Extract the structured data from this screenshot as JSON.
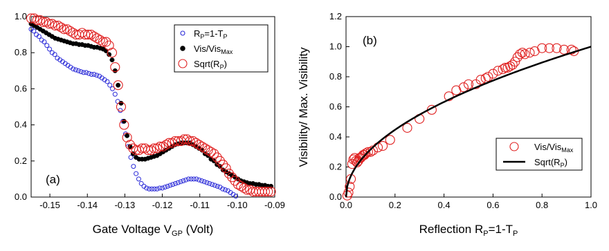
{
  "chart_data": [
    {
      "type": "scatter",
      "panel_label": "(a)",
      "xlabel_main": "Gate Voltage V",
      "xlabel_sub": "GP",
      "xlabel_tail": " (Volt)",
      "xlim": [
        -0.155,
        -0.09
      ],
      "ylim": [
        0.0,
        1.0
      ],
      "xticks": [
        -0.15,
        -0.14,
        -0.13,
        -0.12,
        -0.11,
        -0.1,
        -0.09
      ],
      "xtick_labels": [
        "-0.15",
        "-0.14",
        "-0.13",
        "-0.12",
        "-0.11",
        "-0.10",
        "-0.09"
      ],
      "yticks": [
        0.0,
        0.2,
        0.4,
        0.6,
        0.8,
        1.0
      ],
      "ytick_labels": [
        "0.0",
        "0.2",
        "0.4",
        "0.6",
        "0.8",
        "1.0"
      ],
      "legend_position": "top-right",
      "series": [
        {
          "legend": {
            "main": "R",
            "sub": "P",
            "tail": "=1-T",
            "sub2": "P"
          },
          "marker": "open-circle-small",
          "color": "#2a2ad8",
          "x": [
            -0.155,
            -0.1543,
            -0.1536,
            -0.1529,
            -0.1522,
            -0.1515,
            -0.1508,
            -0.1501,
            -0.1494,
            -0.1487,
            -0.148,
            -0.1473,
            -0.1466,
            -0.1459,
            -0.1452,
            -0.1445,
            -0.1438,
            -0.1431,
            -0.1424,
            -0.1417,
            -0.141,
            -0.1403,
            -0.1396,
            -0.1389,
            -0.1382,
            -0.1375,
            -0.1368,
            -0.1361,
            -0.1354,
            -0.1347,
            -0.134,
            -0.1333,
            -0.1326,
            -0.1319,
            -0.1312,
            -0.1305,
            -0.1298,
            -0.1291,
            -0.1284,
            -0.1277,
            -0.127,
            -0.1263,
            -0.1256,
            -0.1249,
            -0.1242,
            -0.1235,
            -0.1228,
            -0.1221,
            -0.1214,
            -0.1207,
            -0.12,
            -0.1193,
            -0.1186,
            -0.1179,
            -0.1172,
            -0.1165,
            -0.1158,
            -0.1151,
            -0.1144,
            -0.1137,
            -0.113,
            -0.1123,
            -0.1116,
            -0.1109,
            -0.1102,
            -0.1095,
            -0.1088,
            -0.1081,
            -0.1074,
            -0.1067,
            -0.106,
            -0.1053,
            -0.1046,
            -0.1039,
            -0.1032,
            -0.1025,
            -0.1018,
            -0.1011,
            -0.1004
          ],
          "y": [
            0.93,
            0.92,
            0.9,
            0.89,
            0.87,
            0.86,
            0.84,
            0.82,
            0.8,
            0.79,
            0.77,
            0.76,
            0.75,
            0.74,
            0.73,
            0.72,
            0.71,
            0.705,
            0.7,
            0.695,
            0.69,
            0.69,
            0.685,
            0.68,
            0.68,
            0.675,
            0.67,
            0.66,
            0.65,
            0.64,
            0.62,
            0.6,
            0.57,
            0.53,
            0.48,
            0.42,
            0.35,
            0.28,
            0.22,
            0.17,
            0.13,
            0.1,
            0.075,
            0.06,
            0.05,
            0.045,
            0.045,
            0.045,
            0.045,
            0.05,
            0.05,
            0.055,
            0.06,
            0.065,
            0.07,
            0.075,
            0.08,
            0.085,
            0.09,
            0.095,
            0.1,
            0.1,
            0.1,
            0.1,
            0.095,
            0.09,
            0.085,
            0.08,
            0.075,
            0.07,
            0.065,
            0.06,
            0.055,
            0.045,
            0.04,
            0.035,
            0.025,
            0.015,
            0.005
          ]
        },
        {
          "legend": {
            "main": "Vis/Vis",
            "sub": "Max",
            "tail": "",
            "sub2": ""
          },
          "marker": "filled-circle",
          "color": "#000000",
          "x": [
            -0.155,
            -0.1542,
            -0.1534,
            -0.1526,
            -0.1518,
            -0.151,
            -0.1502,
            -0.1494,
            -0.1486,
            -0.1478,
            -0.147,
            -0.1462,
            -0.1454,
            -0.1446,
            -0.1438,
            -0.143,
            -0.1422,
            -0.1414,
            -0.1406,
            -0.1398,
            -0.139,
            -0.1382,
            -0.1374,
            -0.1366,
            -0.1358,
            -0.135,
            -0.1342,
            -0.1334,
            -0.1326,
            -0.1318,
            -0.131,
            -0.1302,
            -0.1294,
            -0.1286,
            -0.1278,
            -0.127,
            -0.1262,
            -0.1254,
            -0.1246,
            -0.1238,
            -0.123,
            -0.1222,
            -0.1214,
            -0.1206,
            -0.1198,
            -0.119,
            -0.1182,
            -0.1174,
            -0.1166,
            -0.1158,
            -0.115,
            -0.1142,
            -0.1134,
            -0.1126,
            -0.1118,
            -0.111,
            -0.1102,
            -0.1094,
            -0.1086,
            -0.1078,
            -0.107,
            -0.1062,
            -0.1054,
            -0.1046,
            -0.1038,
            -0.103,
            -0.1022,
            -0.1014,
            -0.1006,
            -0.0998,
            -0.099,
            -0.0982,
            -0.0974,
            -0.0966,
            -0.0958,
            -0.095,
            -0.0942,
            -0.0934,
            -0.0926,
            -0.0918,
            -0.091
          ],
          "y": [
            0.96,
            0.95,
            0.94,
            0.93,
            0.92,
            0.91,
            0.9,
            0.89,
            0.88,
            0.875,
            0.87,
            0.865,
            0.86,
            0.855,
            0.85,
            0.85,
            0.845,
            0.845,
            0.84,
            0.84,
            0.835,
            0.83,
            0.83,
            0.825,
            0.82,
            0.81,
            0.79,
            0.76,
            0.7,
            0.62,
            0.52,
            0.42,
            0.34,
            0.28,
            0.24,
            0.22,
            0.21,
            0.21,
            0.21,
            0.215,
            0.22,
            0.225,
            0.23,
            0.24,
            0.25,
            0.26,
            0.27,
            0.28,
            0.29,
            0.295,
            0.3,
            0.3,
            0.3,
            0.3,
            0.29,
            0.28,
            0.27,
            0.26,
            0.24,
            0.23,
            0.21,
            0.2,
            0.18,
            0.17,
            0.15,
            0.14,
            0.13,
            0.12,
            0.11,
            0.1,
            0.09,
            0.085,
            0.08,
            0.075,
            0.075,
            0.07,
            0.07,
            0.065,
            0.065,
            0.06,
            0.06
          ]
        },
        {
          "legend": {
            "main": "Sqrt(R",
            "sub": "P",
            "tail": ")",
            "sub2": ""
          },
          "marker": "open-circle-large",
          "color": "#e02020",
          "x": [
            -0.155,
            -0.1542,
            -0.1534,
            -0.1526,
            -0.1518,
            -0.151,
            -0.1502,
            -0.1494,
            -0.1486,
            -0.1478,
            -0.147,
            -0.1462,
            -0.1454,
            -0.1446,
            -0.1438,
            -0.143,
            -0.1422,
            -0.1414,
            -0.1406,
            -0.1398,
            -0.139,
            -0.1382,
            -0.1374,
            -0.1366,
            -0.1358,
            -0.135,
            -0.1342,
            -0.1334,
            -0.1326,
            -0.1318,
            -0.131,
            -0.1302,
            -0.1294,
            -0.1286,
            -0.1278,
            -0.127,
            -0.1262,
            -0.1254,
            -0.1246,
            -0.1238,
            -0.123,
            -0.1222,
            -0.1214,
            -0.1206,
            -0.1198,
            -0.119,
            -0.1182,
            -0.1174,
            -0.1166,
            -0.1158,
            -0.115,
            -0.1142,
            -0.1134,
            -0.1126,
            -0.1118,
            -0.111,
            -0.1102,
            -0.1094,
            -0.1086,
            -0.1078,
            -0.107,
            -0.1062,
            -0.1054,
            -0.1046,
            -0.1038,
            -0.103,
            -0.1022,
            -0.1014,
            -0.1006,
            -0.0998,
            -0.099,
            -0.0982,
            -0.0974,
            -0.0966,
            -0.0958,
            -0.095,
            -0.0942,
            -0.0934,
            -0.0926,
            -0.0918,
            -0.091
          ],
          "y": [
            0.99,
            0.99,
            0.98,
            0.98,
            0.97,
            0.97,
            0.96,
            0.96,
            0.95,
            0.95,
            0.94,
            0.93,
            0.93,
            0.92,
            0.91,
            0.9,
            0.9,
            0.91,
            0.9,
            0.9,
            0.9,
            0.89,
            0.88,
            0.87,
            0.86,
            0.86,
            0.84,
            0.8,
            0.72,
            0.62,
            0.5,
            0.4,
            0.33,
            0.29,
            0.27,
            0.26,
            0.26,
            0.27,
            0.27,
            0.26,
            0.26,
            0.27,
            0.27,
            0.28,
            0.28,
            0.29,
            0.3,
            0.3,
            0.31,
            0.31,
            0.31,
            0.32,
            0.32,
            0.31,
            0.31,
            0.3,
            0.29,
            0.28,
            0.27,
            0.26,
            0.25,
            0.24,
            0.22,
            0.2,
            0.18,
            0.16,
            0.13,
            0.11,
            0.09,
            0.07,
            0.06,
            0.05,
            0.04,
            0.04,
            0.03,
            0.03,
            0.03,
            0.03,
            0.03,
            0.03,
            0.03
          ]
        }
      ]
    },
    {
      "type": "scatter",
      "panel_label": "(b)",
      "xlabel_main": "Reflection R",
      "xlabel_sub": "P",
      "xlabel_tail": "=1-T",
      "xlabel_sub2": "P",
      "ylabel": "Visibility/ Max. Visibility",
      "xlim": [
        0.0,
        1.0
      ],
      "ylim": [
        0.0,
        1.2
      ],
      "xticks": [
        0.0,
        0.2,
        0.4,
        0.6,
        0.8,
        1.0
      ],
      "xtick_labels": [
        "0.0",
        "0.2",
        "0.4",
        "0.6",
        "0.8",
        "1.0"
      ],
      "yticks": [
        0.0,
        0.2,
        0.4,
        0.6,
        0.8,
        1.0,
        1.2
      ],
      "ytick_labels": [
        "0.0",
        "0.2",
        "0.4",
        "0.6",
        "0.8",
        "1.0",
        "1.2"
      ],
      "legend_position": "bottom-right",
      "series": [
        {
          "legend": {
            "main": "Vis/Vis",
            "sub": "Max",
            "tail": "",
            "sub2": ""
          },
          "marker": "open-circle-large",
          "color": "#e02020",
          "x": [
            0.005,
            0.01,
            0.015,
            0.02,
            0.025,
            0.03,
            0.035,
            0.04,
            0.045,
            0.05,
            0.055,
            0.06,
            0.065,
            0.07,
            0.075,
            0.08,
            0.09,
            0.1,
            0.11,
            0.13,
            0.15,
            0.18,
            0.25,
            0.3,
            0.35,
            0.42,
            0.45,
            0.48,
            0.5,
            0.53,
            0.55,
            0.57,
            0.58,
            0.6,
            0.62,
            0.64,
            0.65,
            0.66,
            0.67,
            0.68,
            0.69,
            0.7,
            0.71,
            0.72,
            0.73,
            0.75,
            0.77,
            0.8,
            0.83,
            0.86,
            0.89,
            0.92,
            0.93
          ],
          "y": [
            0.01,
            0.03,
            0.07,
            0.12,
            0.22,
            0.25,
            0.26,
            0.24,
            0.23,
            0.24,
            0.26,
            0.26,
            0.27,
            0.28,
            0.28,
            0.29,
            0.3,
            0.3,
            0.31,
            0.33,
            0.34,
            0.38,
            0.46,
            0.52,
            0.58,
            0.67,
            0.71,
            0.73,
            0.75,
            0.75,
            0.78,
            0.79,
            0.8,
            0.82,
            0.84,
            0.85,
            0.86,
            0.86,
            0.87,
            0.88,
            0.9,
            0.93,
            0.95,
            0.96,
            0.95,
            0.96,
            0.97,
            0.99,
            0.99,
            0.99,
            0.98,
            0.98,
            0.97
          ]
        },
        {
          "legend": {
            "main": "Sqrt(R",
            "sub": "P",
            "tail": ")",
            "sub2": ""
          },
          "marker": "line",
          "color": "#000000",
          "function": "sqrt",
          "x_range": [
            0.0,
            1.0
          ]
        }
      ]
    }
  ]
}
